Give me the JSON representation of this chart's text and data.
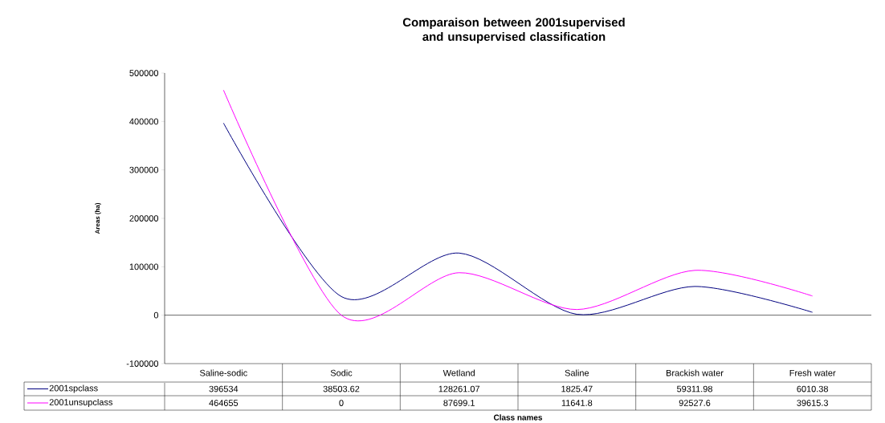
{
  "chart_data": {
    "type": "line",
    "title": "Comparaison between 2001supervised and unsupervised classification",
    "xlabel": "Class names",
    "ylabel": "Areas (ha)",
    "categories": [
      "Saline-sodic",
      "Sodic",
      "Wetland",
      "Saline",
      "Brackish water",
      "Fresh water"
    ],
    "series": [
      {
        "name": "2001spclass",
        "color": "#000080",
        "values": [
          396534,
          38503.62,
          128261.07,
          1825.47,
          59311.98,
          6010.38
        ]
      },
      {
        "name": "2001unsupclass",
        "color": "#ff00ff",
        "values": [
          464655,
          0,
          87699.1,
          11641.8,
          92527.6,
          39615.3
        ]
      }
    ],
    "ylim": [
      -100000,
      500000
    ],
    "yticks": [
      -100000,
      0,
      100000,
      200000,
      300000,
      400000,
      500000
    ],
    "data_labels": true,
    "legend": "bottom",
    "line_style": "solid"
  }
}
